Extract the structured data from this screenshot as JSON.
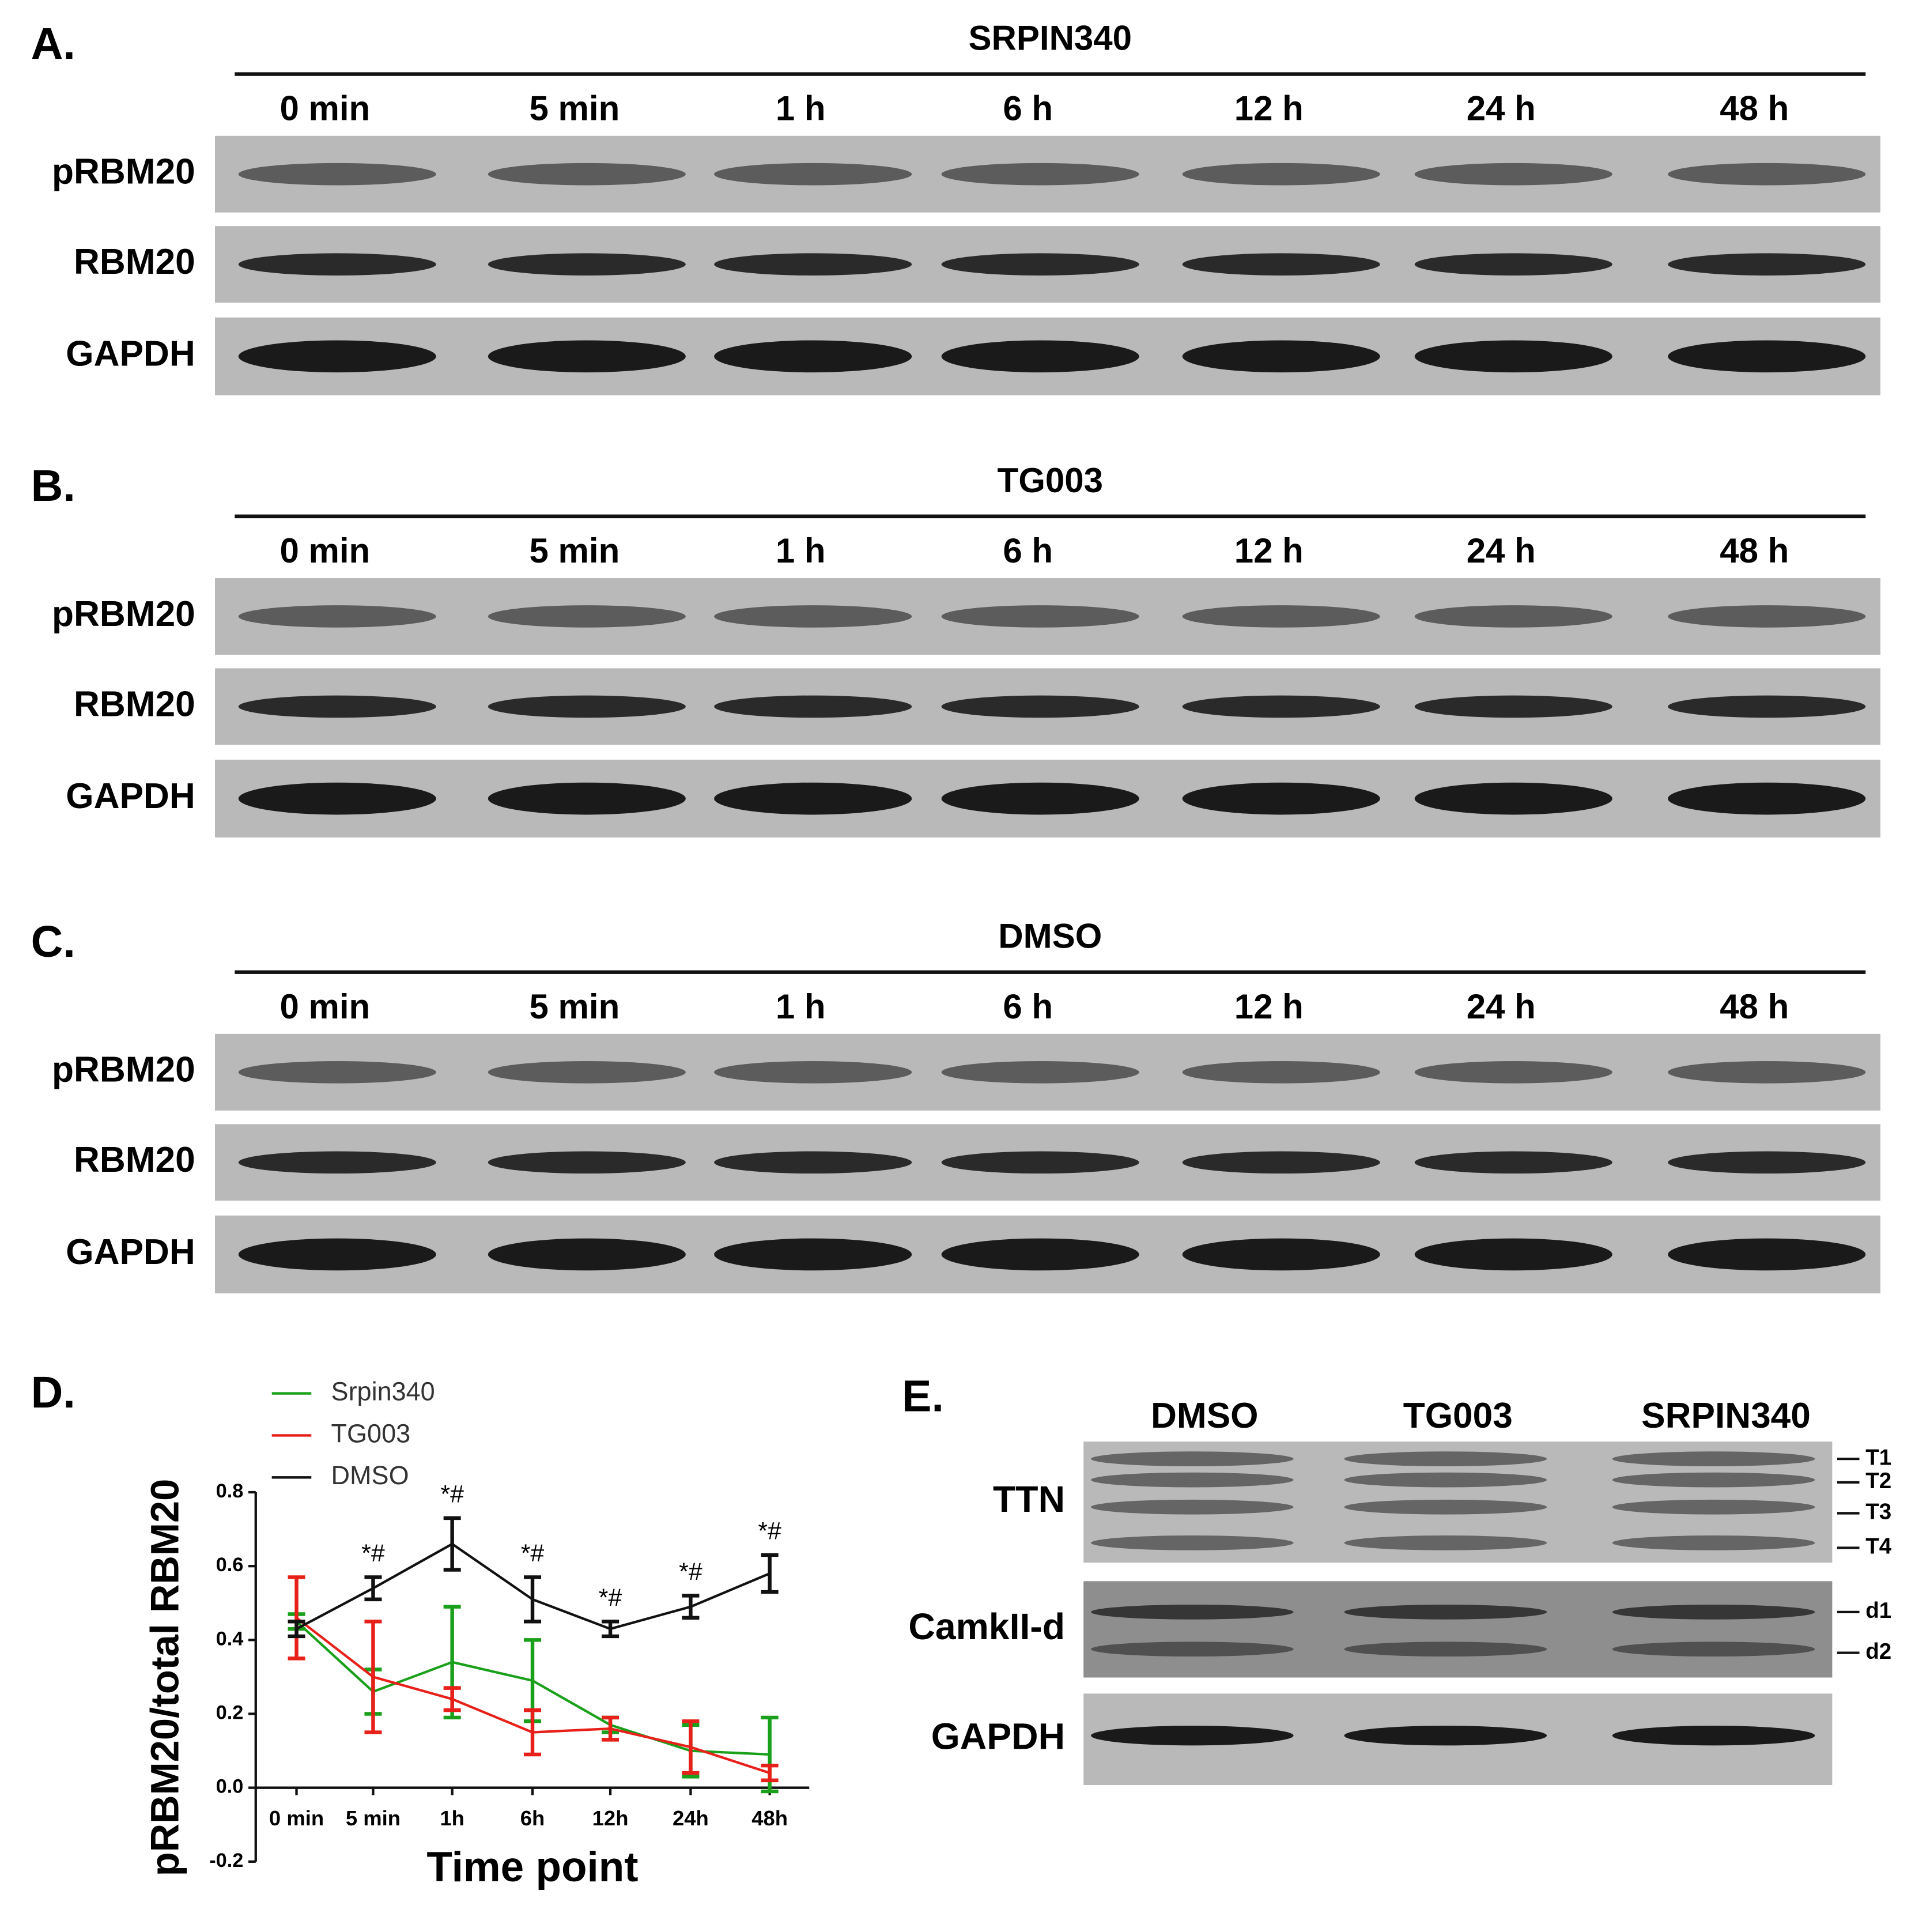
{
  "panels": [
    {
      "label": "A.",
      "title": "SRPIN340",
      "columns": [
        "0 min",
        "5 min",
        "1 h",
        "6 h",
        "12 h",
        "24 h",
        "48 h"
      ],
      "rows": [
        "pRBM20",
        "RBM20",
        "GAPDH"
      ]
    },
    {
      "label": "B.",
      "title": "TG003",
      "columns": [
        "0 min",
        "5 min",
        "1 h",
        "6 h",
        "12 h",
        "24 h",
        "48 h"
      ],
      "rows": [
        "pRBM20",
        "RBM20",
        "GAPDH"
      ]
    },
    {
      "label": "C.",
      "title": "DMSO",
      "columns": [
        "0 min",
        "5 min",
        "1 h",
        "6 h",
        "12 h",
        "24 h",
        "48 h"
      ],
      "rows": [
        "pRBM20",
        "RBM20",
        "GAPDH"
      ]
    }
  ],
  "chart_data": {
    "type": "line",
    "label": "D.",
    "y_label": "pRBM20/total RBM20",
    "x_label": "Time point",
    "categories": [
      "0 min",
      "5 min",
      "1h",
      "6h",
      "12h",
      "24h",
      "48h"
    ],
    "ylim": [
      -0.2,
      0.8
    ],
    "yticks": [
      -0.2,
      {
        "value": 0,
        "label": "0.0"
      },
      0.2,
      0.4,
      0.6,
      0.8
    ],
    "series": [
      {
        "name": "Srpin340",
        "color": "#1aa01a",
        "values": [
          0.45,
          0.26,
          0.34,
          0.29,
          0.17,
          0.1,
          0.09
        ],
        "errors": [
          0.02,
          0.06,
          0.15,
          0.11,
          0.02,
          0.07,
          0.1
        ]
      },
      {
        "name": "TG003",
        "color": "#e8201a",
        "values": [
          0.46,
          0.3,
          0.24,
          0.15,
          0.16,
          0.11,
          0.04
        ],
        "errors": [
          0.11,
          0.15,
          0.03,
          0.06,
          0.03,
          0.07,
          0.02
        ]
      },
      {
        "name": "DMSO",
        "color": "#111111",
        "values": [
          0.43,
          0.54,
          0.66,
          0.51,
          0.43,
          0.49,
          0.58
        ],
        "errors": [
          0.02,
          0.03,
          0.07,
          0.06,
          0.02,
          0.03,
          0.05
        ]
      }
    ],
    "annotations": [
      null,
      "*#",
      "*#",
      "*#",
      "*#",
      "*#",
      "*#"
    ]
  },
  "panel_e": {
    "label": "E.",
    "columns": [
      "DMSO",
      "TG003",
      "SRPIN340"
    ],
    "rows": [
      {
        "name": "TTN",
        "markers": [
          "T1",
          "T2",
          "T3",
          "T4"
        ]
      },
      {
        "name": "CamkII-d",
        "markers": [
          "d1",
          "d2"
        ]
      },
      {
        "name": "GAPDH",
        "markers": []
      }
    ]
  }
}
